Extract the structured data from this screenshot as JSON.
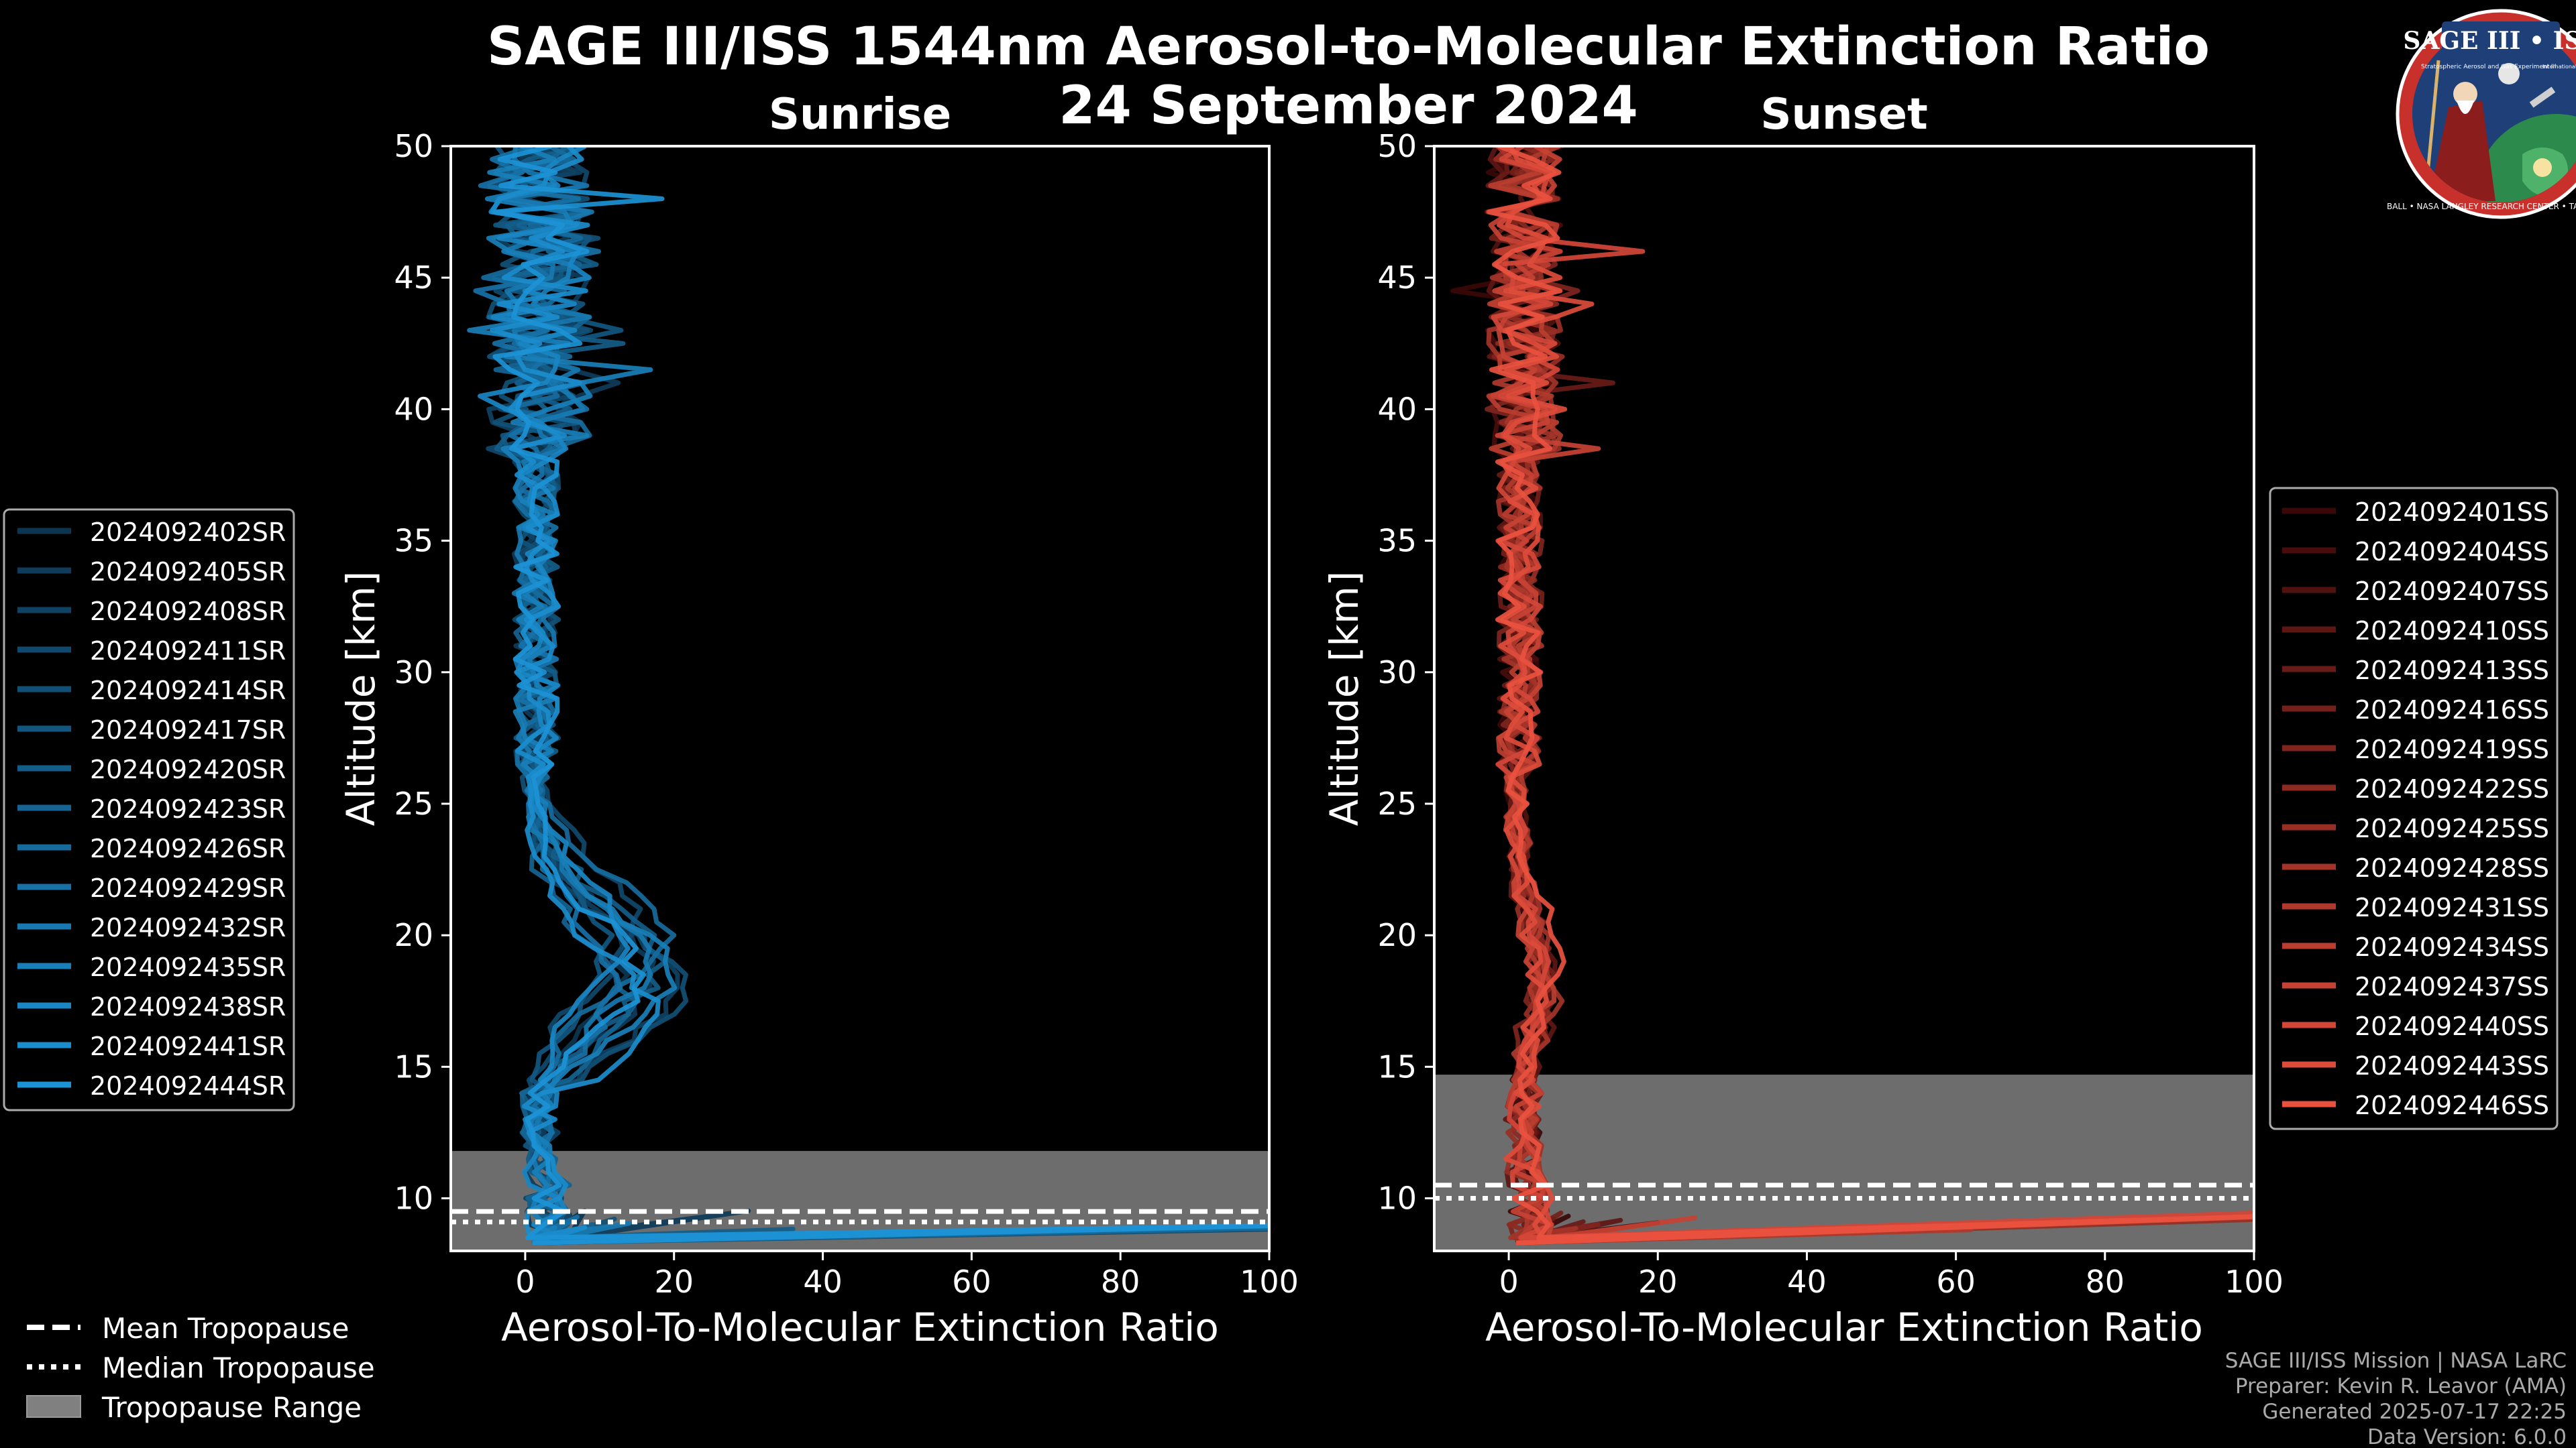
{
  "header": {
    "title_line1": "SAGE III/ISS 1544nm Aerosol-to-Molecular Extinction Ratio",
    "title_line2": "24 September 2024"
  },
  "logo": {
    "text_top": "SAGE III • ISS",
    "text_small1": "Stratospheric Aerosol and Gas Experiment III",
    "text_small2": "International Space Station",
    "ring_text": "BALL • NASA LANGLEY RESEARCH CENTER • TAS-I • ESA"
  },
  "footer": {
    "line1": "SAGE III/ISS Mission | NASA LaRC",
    "line2": "Preparer: Kevin R. Leavor (AMA)",
    "line3": "Generated 2025-07-17 22:25",
    "line4": "Data Version: 6.0.0"
  },
  "tropo_legend": {
    "mean": "Mean Tropopause",
    "median": "Median Tropopause",
    "range": "Tropopause Range"
  },
  "chart_data": [
    {
      "type": "line",
      "title": "Sunrise",
      "xlabel": "Aerosol-To-Molecular Extinction Ratio",
      "ylabel": "Altitude [km]",
      "xlim": [
        -10,
        100
      ],
      "ylim": [
        8,
        50
      ],
      "xticks": [
        0,
        20,
        40,
        60,
        80,
        100
      ],
      "yticks": [
        10,
        15,
        20,
        25,
        30,
        35,
        40,
        45,
        50
      ],
      "color_dark": "#0d3550",
      "color_light": "#1c93d6",
      "tropopause": {
        "mean": 9.5,
        "median": 9.1,
        "range": [
          8.0,
          11.8
        ]
      },
      "series": [
        {
          "name": "2024092402SR",
          "hump_x": 12,
          "hump_alt": 19.0,
          "surface_x": 8,
          "seed": 11
        },
        {
          "name": "2024092405SR",
          "hump_x": 16,
          "hump_alt": 18.5,
          "surface_x": 30,
          "seed": 12
        },
        {
          "name": "2024092408SR",
          "hump_x": 19,
          "hump_alt": 18.0,
          "surface_x": 6,
          "seed": 13
        },
        {
          "name": "2024092411SR",
          "hump_x": 14,
          "hump_alt": 20.5,
          "surface_x": 100,
          "seed": 14
        },
        {
          "name": "2024092414SR",
          "hump_x": 20,
          "hump_alt": 18.0,
          "surface_x": 12,
          "seed": 15
        },
        {
          "name": "2024092417SR",
          "hump_x": 10,
          "hump_alt": 19.5,
          "surface_x": 5,
          "seed": 16
        },
        {
          "name": "2024092420SR",
          "hump_x": 17,
          "hump_alt": 19.0,
          "surface_x": 36,
          "seed": 17
        },
        {
          "name": "2024092423SR",
          "hump_x": 13,
          "hump_alt": 17.5,
          "surface_x": 9,
          "seed": 18
        },
        {
          "name": "2024092426SR",
          "hump_x": 18,
          "hump_alt": 20.0,
          "surface_x": 100,
          "seed": 19
        },
        {
          "name": "2024092429SR",
          "hump_x": 11,
          "hump_alt": 18.0,
          "surface_x": 7,
          "seed": 20
        },
        {
          "name": "2024092432SR",
          "hump_x": 15,
          "hump_alt": 19.0,
          "surface_x": 14,
          "seed": 21
        },
        {
          "name": "2024092435SR",
          "hump_x": 19,
          "hump_alt": 18.5,
          "surface_x": 4,
          "seed": 22
        },
        {
          "name": "2024092438SR",
          "hump_x": 12,
          "hump_alt": 20.0,
          "surface_x": 100,
          "seed": 23
        },
        {
          "name": "2024092441SR",
          "hump_x": 16,
          "hump_alt": 17.0,
          "surface_x": 8,
          "seed": 24
        },
        {
          "name": "2024092444SR",
          "hump_x": 14,
          "hump_alt": 18.5,
          "surface_x": 100,
          "seed": 25
        }
      ]
    },
    {
      "type": "line",
      "title": "Sunset",
      "xlabel": "Aerosol-To-Molecular Extinction Ratio",
      "ylabel": "Altitude [km]",
      "xlim": [
        -10,
        100
      ],
      "ylim": [
        8,
        50
      ],
      "xticks": [
        0,
        20,
        40,
        60,
        80,
        100
      ],
      "yticks": [
        10,
        15,
        20,
        25,
        30,
        35,
        40,
        45,
        50
      ],
      "color_dark": "#3a0808",
      "color_light": "#e9513f",
      "tropopause": {
        "mean": 10.5,
        "median": 10.0,
        "range": [
          8.0,
          14.7
        ]
      },
      "series": [
        {
          "name": "2024092401SS",
          "hump_x": 3,
          "hump_alt": 18.0,
          "surface_x": 8,
          "seed": 31
        },
        {
          "name": "2024092404SS",
          "hump_x": 4,
          "hump_alt": 18.5,
          "surface_x": 20,
          "seed": 32
        },
        {
          "name": "2024092407SS",
          "hump_x": 3,
          "hump_alt": 19.0,
          "surface_x": 6,
          "seed": 33
        },
        {
          "name": "2024092410SS",
          "hump_x": 5,
          "hump_alt": 18.0,
          "surface_x": 15,
          "seed": 34
        },
        {
          "name": "2024092413SS",
          "hump_x": 3,
          "hump_alt": 17.5,
          "surface_x": 10,
          "seed": 35
        },
        {
          "name": "2024092416SS",
          "hump_x": 4,
          "hump_alt": 18.0,
          "surface_x": 7,
          "seed": 36
        },
        {
          "name": "2024092419SS",
          "hump_x": 3,
          "hump_alt": 19.5,
          "surface_x": 12,
          "seed": 37
        },
        {
          "name": "2024092422SS",
          "hump_x": 4,
          "hump_alt": 18.0,
          "surface_x": 5,
          "seed": 38
        },
        {
          "name": "2024092425SS",
          "hump_x": 3,
          "hump_alt": 18.5,
          "surface_x": 100,
          "seed": 39
        },
        {
          "name": "2024092428SS",
          "hump_x": 5,
          "hump_alt": 18.0,
          "surface_x": 9,
          "seed": 40
        },
        {
          "name": "2024092431SS",
          "hump_x": 3,
          "hump_alt": 19.0,
          "surface_x": 62,
          "seed": 41
        },
        {
          "name": "2024092434SS",
          "hump_x": 4,
          "hump_alt": 18.0,
          "surface_x": 100,
          "seed": 42
        },
        {
          "name": "2024092437SS",
          "hump_x": 3,
          "hump_alt": 17.5,
          "surface_x": 25,
          "seed": 43
        },
        {
          "name": "2024092440SS",
          "hump_x": 4,
          "hump_alt": 18.5,
          "surface_x": 100,
          "seed": 44
        },
        {
          "name": "2024092443SS",
          "hump_x": 3,
          "hump_alt": 18.0,
          "surface_x": 100,
          "seed": 45
        },
        {
          "name": "2024092446SS",
          "hump_x": 5,
          "hump_alt": 19.0,
          "surface_x": 100,
          "seed": 46
        }
      ]
    }
  ]
}
